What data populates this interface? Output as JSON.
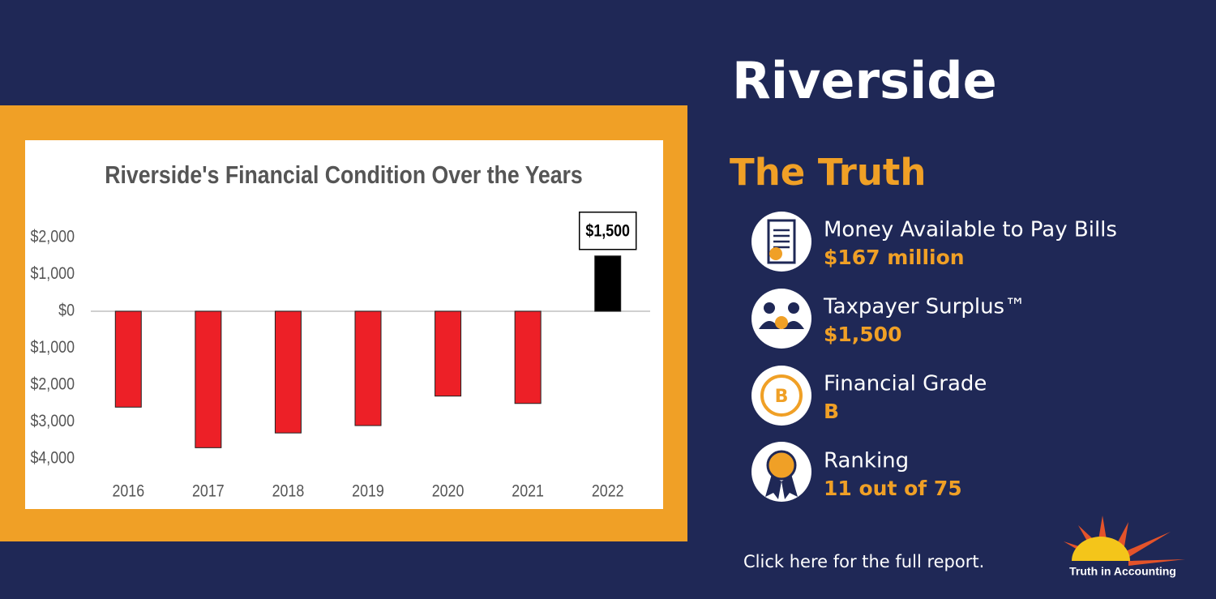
{
  "header": {
    "title": "Riverside",
    "subtitle": "The Truth"
  },
  "chart_data": {
    "type": "bar",
    "title": "Riverside's Financial Condition Over the Years",
    "categories": [
      "2016",
      "2017",
      "2018",
      "2019",
      "2020",
      "2021",
      "2022"
    ],
    "values": [
      -2600,
      -3700,
      -3300,
      -3100,
      -2300,
      -2500,
      1500
    ],
    "value_labels": [
      null,
      null,
      null,
      null,
      null,
      null,
      "$1,500"
    ],
    "colors": [
      "#ed2027",
      "#ed2027",
      "#ed2027",
      "#ed2027",
      "#ed2027",
      "#ed2027",
      "#000000"
    ],
    "ylim": [
      -4000,
      2000
    ],
    "yticks": [
      {
        "value": -4000,
        "label": "$4,000"
      },
      {
        "value": -3000,
        "label": "$3,000"
      },
      {
        "value": -2000,
        "label": "$2,000"
      },
      {
        "value": -1000,
        "label": "$1,000"
      },
      {
        "value": 0,
        "label": "$0"
      },
      {
        "value": 1000,
        "label": "$1,000"
      },
      {
        "value": 2000,
        "label": "$2,000"
      }
    ]
  },
  "stats": [
    {
      "label": "Money Available to Pay Bills",
      "value": "$167 million"
    },
    {
      "label": "Taxpayer Surplus™",
      "value": "$1,500"
    },
    {
      "label": "Financial Grade",
      "value": "B"
    },
    {
      "label": "Ranking",
      "value": "11 out of 75"
    }
  ],
  "footer": {
    "link": "Click here for the full report.",
    "logo": "Truth in Accounting"
  }
}
